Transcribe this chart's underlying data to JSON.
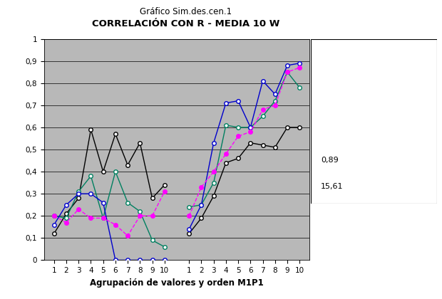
{
  "title_top": "Gráfico Sim.des.cen.1",
  "title_main": "CORRELACIÓN CON R - MEDIA 10 W",
  "xlabel": "Agrupación de valores y orden M1P1",
  "ylabel": "",
  "ylim": [
    0,
    1
  ],
  "yticks": [
    0,
    0.1,
    0.2,
    0.3,
    0.4,
    0.5,
    0.6,
    0.7,
    0.8,
    0.9,
    1
  ],
  "ytick_labels": [
    "0",
    "0,1",
    "0,2",
    "0,3",
    "0,4",
    "0,5",
    "0,6",
    "0,7",
    "0,8",
    "0,9",
    "1"
  ],
  "xticks_group1": [
    1,
    2,
    3,
    4,
    5,
    6,
    7,
    8,
    9,
    10
  ],
  "xticks_group2": [
    1,
    2,
    3,
    4,
    5,
    6,
    7,
    8,
    9,
    10
  ],
  "legend_extra": [
    "0,89",
    "15,61"
  ],
  "T1d_1": [
    0.12,
    0.21,
    0.28,
    0.59,
    0.4,
    0.57,
    0.43,
    0.53,
    0.28,
    0.34
  ],
  "T1d_2": [
    0.12,
    0.19,
    0.29,
    0.44,
    0.46,
    0.53,
    0.52,
    0.51,
    0.6,
    0.6
  ],
  "X3_1": [
    0.2,
    0.19,
    0.31,
    0.38,
    0.19,
    0.4,
    0.26,
    0.22,
    0.09,
    0.06
  ],
  "X3_2": [
    0.24,
    0.25,
    0.35,
    0.61,
    0.6,
    0.6,
    0.65,
    0.72,
    0.85,
    0.78
  ],
  "X6_1": [
    0.16,
    0.25,
    0.3,
    0.3,
    0.26,
    0.0,
    0.0,
    0.0,
    0.0,
    0.0
  ],
  "X6_2": [
    0.14,
    0.25,
    0.53,
    0.71,
    0.72,
    0.6,
    0.81,
    0.75,
    0.88,
    0.89
  ],
  "W_1": [
    0.2,
    0.17,
    0.23,
    0.19,
    0.19,
    0.16,
    0.11,
    0.2,
    0.2,
    0.31
  ],
  "W_2": [
    0.2,
    0.33,
    0.4,
    0.48,
    0.56,
    0.58,
    0.68,
    0.7,
    0.85,
    0.87
  ],
  "color_T1d": "#000000",
  "color_X3": "#008060",
  "color_X6": "#0000cc",
  "color_W": "#ff00ff",
  "bg_plot": "#b8b8b8",
  "bg_fig": "#ffffff",
  "grid_color": "#888888"
}
